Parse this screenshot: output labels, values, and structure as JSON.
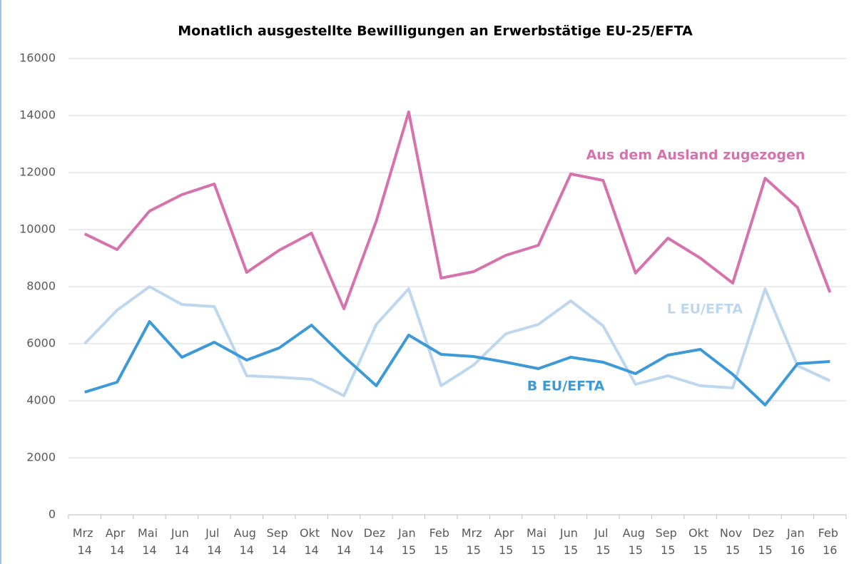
{
  "chart_data": {
    "type": "line",
    "title": "Monatlich ausgestellte Bewilligungen an Erwerbstätige EU-25/EFTA",
    "categories": [
      "Mrz 14",
      "Apr 14",
      "Mai 14",
      "Jun 14",
      "Jul 14",
      "Aug 14",
      "Sep 14",
      "Okt 14",
      "Nov 14",
      "Dez 14",
      "Jan 15",
      "Feb 15",
      "Mrz 15",
      "Apr 15",
      "Mai 15",
      "Jun 15",
      "Jul 15",
      "Aug 15",
      "Sep 15",
      "Okt 15",
      "Nov 15",
      "Dez 15",
      "Jan 16",
      "Feb 16"
    ],
    "series": [
      {
        "name": "Aus dem Ausland zugezogen",
        "color": "#d672ad",
        "values": [
          9850,
          9300,
          10650,
          11225,
          11600,
          8500,
          9275,
          9875,
          7225,
          10300,
          14125,
          8300,
          8525,
          9100,
          9450,
          11950,
          11725,
          8475,
          9700,
          9000,
          8125,
          11800,
          10775,
          7800
        ]
      },
      {
        "name": "L EU/EFTA",
        "color": "#bdd7ee",
        "values": [
          6000,
          7175,
          8000,
          7375,
          7300,
          4875,
          4825,
          4750,
          4175,
          6675,
          7925,
          4525,
          5250,
          6350,
          6675,
          7500,
          6625,
          4575,
          4875,
          4525,
          4450,
          7925,
          5225,
          4700
        ]
      },
      {
        "name": "B EU/EFTA",
        "color": "#3e9ad6",
        "values": [
          4300,
          4650,
          6775,
          5525,
          6050,
          5425,
          5850,
          6650,
          5550,
          4525,
          6300,
          5625,
          5550,
          5350,
          5125,
          5525,
          5350,
          4950,
          5600,
          5800,
          4925,
          3850,
          5300,
          5375
        ]
      }
    ],
    "ylim": [
      0,
      16000
    ],
    "yticks": [
      0,
      2000,
      4000,
      6000,
      8000,
      10000,
      12000,
      14000,
      16000
    ],
    "grid": true
  }
}
